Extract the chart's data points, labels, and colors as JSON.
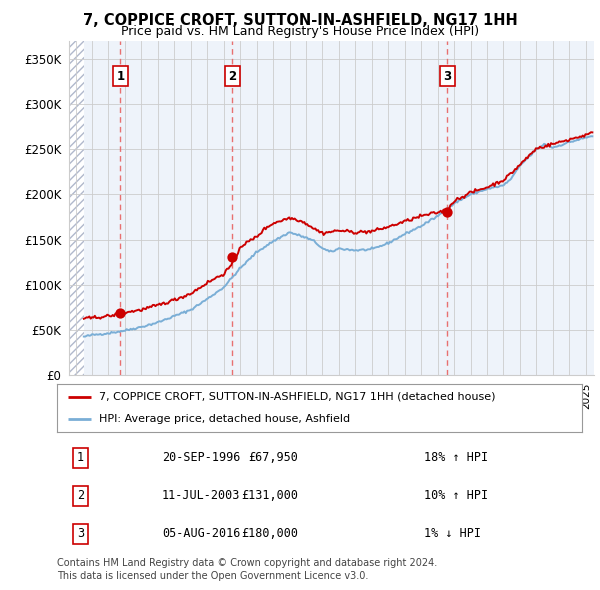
{
  "title": "7, COPPICE CROFT, SUTTON-IN-ASHFIELD, NG17 1HH",
  "subtitle": "Price paid vs. HM Land Registry's House Price Index (HPI)",
  "xlim_start": 1993.6,
  "xlim_end": 2025.5,
  "ylim_min": 0,
  "ylim_max": 370000,
  "yticks": [
    0,
    50000,
    100000,
    150000,
    200000,
    250000,
    300000,
    350000
  ],
  "ytick_labels": [
    "£0",
    "£50K",
    "£100K",
    "£150K",
    "£200K",
    "£250K",
    "£300K",
    "£350K"
  ],
  "hatch_end": 1994.5,
  "transactions": [
    {
      "year": 1996.72,
      "price": 67950,
      "label": "1"
    },
    {
      "year": 2003.53,
      "price": 131000,
      "label": "2"
    },
    {
      "year": 2016.59,
      "price": 180000,
      "label": "3"
    }
  ],
  "hpi_color": "#7aaed6",
  "price_color": "#cc0000",
  "grid_color": "#cccccc",
  "vline_color": "#e87070",
  "bg_color": "#eef3fa",
  "legend_line1": "7, COPPICE CROFT, SUTTON-IN-ASHFIELD, NG17 1HH (detached house)",
  "legend_line2": "HPI: Average price, detached house, Ashfield",
  "table_rows": [
    {
      "num": "1",
      "date": "20-SEP-1996",
      "price": "£67,950",
      "hpi": "18% ↑ HPI"
    },
    {
      "num": "2",
      "date": "11-JUL-2003",
      "price": "£131,000",
      "hpi": "10% ↑ HPI"
    },
    {
      "num": "3",
      "date": "05-AUG-2016",
      "price": "£180,000",
      "hpi": "1% ↓ HPI"
    }
  ],
  "footnote": "Contains HM Land Registry data © Crown copyright and database right 2024.\nThis data is licensed under the Open Government Licence v3.0."
}
